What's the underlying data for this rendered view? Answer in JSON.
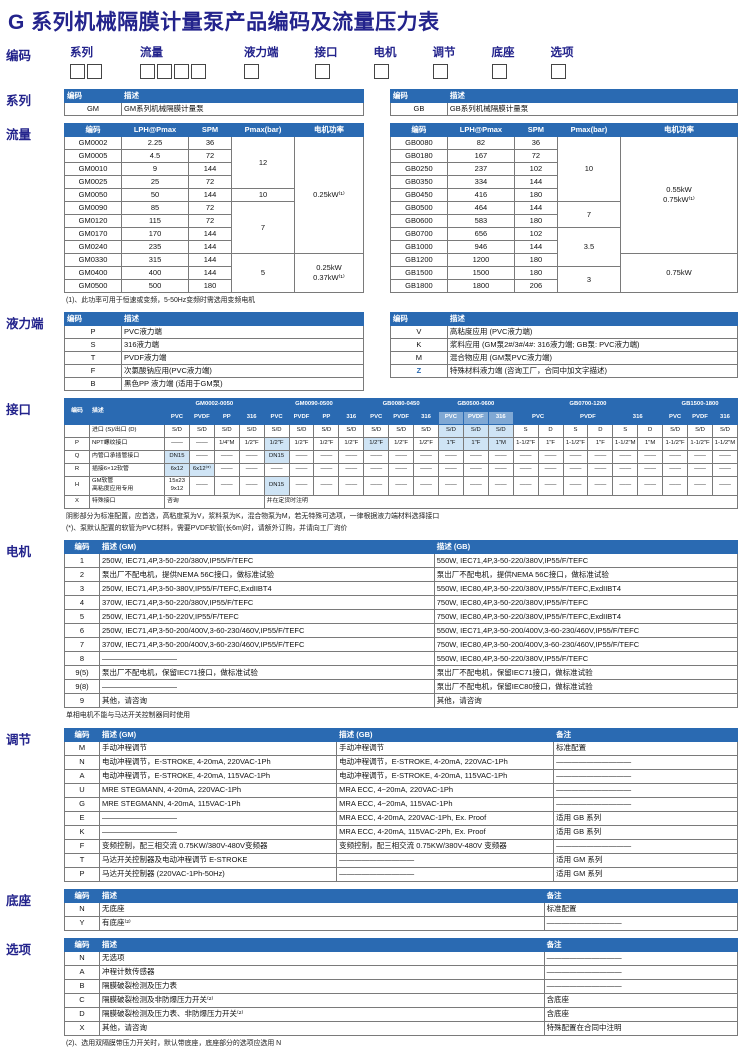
{
  "title": "G 系列机械隔膜计量泵产品编码及流量压力表",
  "coding": {
    "label": "编码",
    "groups": [
      {
        "label": "系列",
        "boxes": 2
      },
      {
        "label": "流量",
        "boxes": 4
      },
      {
        "label": "液力端",
        "boxes": 1
      },
      {
        "label": "接口",
        "boxes": 1
      },
      {
        "label": "电机",
        "boxes": 1
      },
      {
        "label": "调节",
        "boxes": 1
      },
      {
        "label": "底座",
        "boxes": 1
      },
      {
        "label": "选项",
        "boxes": 1
      }
    ]
  },
  "sections": {
    "series": "系列",
    "flow": "流量",
    "liquid": "液力端",
    "interface": "接口",
    "motor": "电机",
    "adjust": "调节",
    "base": "底座",
    "options": "选项"
  },
  "series": {
    "gm": [
      [
        {
          "t": "编码",
          "h": 1,
          "cls": "w52 tl"
        },
        {
          "t": "描述",
          "h": 1,
          "cls": "tl"
        }
      ],
      [
        "GM",
        {
          "t": "GM系列机械隔膜计量泵",
          "cls": "tl"
        }
      ]
    ],
    "gb": [
      [
        {
          "t": "编码",
          "h": 1,
          "cls": "w52 tl"
        },
        {
          "t": "描述",
          "h": 1,
          "cls": "tl"
        }
      ],
      [
        "GB",
        {
          "t": "GB系列机械隔膜计量泵",
          "cls": "tl"
        }
      ]
    ]
  },
  "flow": {
    "gm": [
      [
        {
          "t": "编码",
          "h": 1,
          "cls": "w52"
        },
        {
          "t": "LPH@Pmax",
          "h": 1,
          "cls": "w62"
        },
        {
          "t": "SPM",
          "h": 1,
          "cls": "w38"
        },
        {
          "t": "Pmax(bar)",
          "h": 1,
          "cls": "w58"
        },
        {
          "t": "电机功率",
          "h": 1
        }
      ],
      [
        "GM0002",
        "2.25",
        "36",
        {
          "t": "12",
          "rs": 4
        },
        {
          "t": "0.25kW⁽¹⁾",
          "rs": 9
        }
      ],
      [
        "GM0005",
        "4.5",
        "72"
      ],
      [
        "GM0010",
        "9",
        "144"
      ],
      [
        "GM0025",
        "25",
        "72"
      ],
      [
        "GM0050",
        "50",
        "144",
        "10"
      ],
      [
        "GM0090",
        "85",
        "72",
        {
          "t": "7",
          "rs": 4
        }
      ],
      [
        "GM0120",
        "115",
        "72"
      ],
      [
        "GM0170",
        "170",
        "144"
      ],
      [
        "GM0240",
        "235",
        "144"
      ],
      [
        "GM0330",
        "315",
        "144",
        {
          "t": "5",
          "rs": 3
        },
        {
          "t": "0.25kW\n0.37kW⁽¹⁾",
          "rs": 3,
          "cls": "pre"
        }
      ],
      [
        "GM0400",
        "400",
        "144"
      ],
      [
        "GM0500",
        "500",
        "180"
      ]
    ],
    "gb": [
      [
        {
          "t": "编码",
          "h": 1,
          "cls": "w52"
        },
        {
          "t": "LPH@Pmax",
          "h": 1,
          "cls": "w62"
        },
        {
          "t": "SPM",
          "h": 1,
          "cls": "w38"
        },
        {
          "t": "Pmax(bar)",
          "h": 1,
          "cls": "w58"
        },
        {
          "t": "电机功率",
          "h": 1
        }
      ],
      [
        "GB0080",
        "82",
        "36",
        {
          "t": "10",
          "rs": 5
        },
        {
          "t": "0.55kW\n0.75kW⁽¹⁾",
          "rs": 9,
          "cls": "pre"
        }
      ],
      [
        "GB0180",
        "167",
        "72"
      ],
      [
        "GB0250",
        "237",
        "102"
      ],
      [
        "GB0350",
        "334",
        "144"
      ],
      [
        "GB0450",
        "416",
        "180"
      ],
      [
        "GB0500",
        "464",
        "144",
        {
          "t": "7",
          "rs": 2
        }
      ],
      [
        "GB0600",
        "583",
        "180"
      ],
      [
        "GB0700",
        "656",
        "102",
        {
          "t": "3.5",
          "rs": 3
        }
      ],
      [
        "GB1000",
        "946",
        "144"
      ],
      [
        "GB1200",
        "1200",
        "180",
        {
          "t": "0.75kW",
          "rs": 3
        }
      ],
      [
        "GB1500",
        "1500",
        "180",
        {
          "t": "3",
          "rs": 2
        }
      ],
      [
        "GB1800",
        "1800",
        "206"
      ]
    ],
    "footnote": "(1)、此功率可用于恒速或变频，5-50Hz变频时需选用变频电机"
  },
  "liquid": {
    "left": [
      [
        {
          "t": "编码",
          "h": 1,
          "cls": "w52 tl"
        },
        {
          "t": "描述",
          "h": 1,
          "cls": "tl"
        }
      ],
      [
        "P",
        {
          "t": "PVC液力端",
          "cls": "tl"
        }
      ],
      [
        "S",
        {
          "t": "316液力端",
          "cls": "tl"
        }
      ],
      [
        "T",
        {
          "t": "PVDF液力端",
          "cls": "tl"
        }
      ],
      [
        "F",
        {
          "t": "次氯酸钠应用(PVC液力端)",
          "cls": "tl"
        }
      ],
      [
        "B",
        {
          "t": "黑色PP 液力端 (适用于GM泵)",
          "cls": "tl"
        }
      ]
    ],
    "right": [
      [
        {
          "t": "编码",
          "h": 1,
          "cls": "w52 tl"
        },
        {
          "t": "描述",
          "h": 1,
          "cls": "tl"
        }
      ],
      [
        "V",
        {
          "t": "高粘度应用 (PVC液力端)",
          "cls": "tl"
        }
      ],
      [
        "K",
        {
          "t": "浆料应用 (GM泵2#/3#/4#: 316液力端; GB泵: PVC液力端)",
          "cls": "tl"
        }
      ],
      [
        "M",
        {
          "t": "混合物应用 (GM泵PVC液力端)",
          "cls": "tl"
        }
      ],
      [
        {
          "t": "Z",
          "cls": "blue"
        },
        {
          "t": "特殊材料液力端 (咨询工厂，合同中加文字描述)",
          "cls": "tl"
        }
      ]
    ]
  },
  "interface": {
    "rows": [
      [
        {
          "t": "编码",
          "h": 1,
          "rs": 2,
          "cls": "w24"
        },
        {
          "t": "描述",
          "h": 1,
          "rs": 2,
          "cls": "w72 tl"
        },
        {
          "t": "GM0002-0050",
          "h": 1,
          "cs": 4
        },
        {
          "t": "GM0090-0500",
          "h": 1,
          "cs": 4
        },
        {
          "t": "GB0080-0450",
          "h": 1,
          "cs": 3
        },
        {
          "t": "GB0500-0600",
          "h": 1,
          "cs": 3
        },
        {
          "t": "GB0700-1200",
          "h": 1,
          "cs": 6
        },
        {
          "t": "GB1500-1800",
          "h": 1,
          "cs": 3
        }
      ],
      [
        {
          "t": "PVC",
          "h": 1
        },
        {
          "t": "PVDF",
          "h": 1
        },
        {
          "t": "PP",
          "h": 1
        },
        {
          "t": "316",
          "h": 1
        },
        {
          "t": "PVC",
          "h": 1
        },
        {
          "t": "PVDF",
          "h": 1
        },
        {
          "t": "PP",
          "h": 1
        },
        {
          "t": "316",
          "h": 1
        },
        {
          "t": "PVC",
          "h": 1
        },
        {
          "t": "PVDF",
          "h": 1
        },
        {
          "t": "316",
          "h": 1
        },
        {
          "t": "PVC",
          "h": 1,
          "cls": "hlt"
        },
        {
          "t": "PVDF",
          "h": 1,
          "cls": "hlt"
        },
        {
          "t": "316",
          "h": 1,
          "cls": "hlt"
        },
        {
          "t": "PVC",
          "h": 1,
          "cs": 2
        },
        {
          "t": "PVDF",
          "h": 1,
          "cs": 2
        },
        {
          "t": "316",
          "h": 1,
          "cs": 2
        },
        {
          "t": "PVC",
          "h": 1
        },
        {
          "t": "PVDF",
          "h": 1
        },
        {
          "t": "316",
          "h": 1
        }
      ],
      [
        "",
        {
          "t": "进口 (S)/出口 (D)",
          "cls": "tl"
        },
        "S/D",
        "S/D",
        "S/D",
        "S/D",
        "S/D",
        "S/D",
        "S/D",
        "S/D",
        "S/D",
        "S/D",
        "S/D",
        {
          "t": "S/D",
          "cls": "sh"
        },
        {
          "t": "S/D",
          "cls": "sh"
        },
        {
          "t": "S/D",
          "cls": "sh"
        },
        "S",
        "D",
        "S",
        "D",
        "S",
        "D",
        "S/D",
        "S/D",
        "S/D"
      ],
      [
        "P",
        {
          "t": "NPT螺纹接口",
          "cls": "tl"
        },
        "——",
        "——",
        "1/4\"M",
        "1/2\"F",
        {
          "t": "1/2\"F",
          "cls": "sh"
        },
        "1/2\"F",
        "1/2\"F",
        "1/2\"F",
        {
          "t": "1/2\"F",
          "cls": "sh"
        },
        "1/2\"F",
        "1/2\"F",
        {
          "t": "1\"F",
          "cls": "sh"
        },
        {
          "t": "1\"F",
          "cls": "sh"
        },
        {
          "t": "1\"M",
          "cls": "sh"
        },
        "1-1/2\"F",
        "1\"F",
        "1-1/2\"F",
        "1\"F",
        "1-1/2\"M",
        "1\"M",
        "1-1/2\"F",
        "1-1/2\"F",
        "1-1/2\"M"
      ],
      [
        "Q",
        {
          "t": "内管口承插管接口",
          "cls": "tl"
        },
        {
          "t": "DN15",
          "cls": "sh"
        },
        "——",
        "——",
        "——",
        {
          "t": "DN15",
          "cls": "sh"
        },
        "——",
        "——",
        "——",
        "——",
        "——",
        "——",
        "——",
        "——",
        "——",
        "——",
        "——",
        "——",
        "——",
        "——",
        "——",
        "——",
        "——",
        "——"
      ],
      [
        "R",
        {
          "t": "插接6×12软管",
          "cls": "tl"
        },
        {
          "t": "6x12",
          "cls": "sh"
        },
        {
          "t": "6x12⁽*⁾",
          "cls": "sh"
        },
        "——",
        "——",
        "——",
        "——",
        "——",
        "——",
        "——",
        "——",
        "——",
        "——",
        "——",
        "——",
        "——",
        "——",
        "——",
        "——",
        "——",
        "——",
        "——",
        "——",
        "——"
      ],
      [
        "H",
        {
          "t": "GM软管\n高粘度应用专用",
          "cls": "tl pre"
        },
        {
          "t": "15x23\n9x12",
          "cls": "pre"
        },
        "——",
        "——",
        "——",
        {
          "t": "DN15",
          "cls": "sh"
        },
        "——",
        "——",
        "——",
        "——",
        "——",
        "——",
        "——",
        "——",
        "——",
        "——",
        "——",
        "——",
        "——",
        "——",
        "——",
        "——",
        "——",
        "——"
      ],
      [
        "X",
        {
          "t": "特殊接口",
          "cls": "tl"
        },
        {
          "t": "咨询",
          "cs": 4,
          "cls": "tl"
        },
        {
          "t": "并在定货时注明",
          "cs": 19,
          "cls": "tl"
        }
      ]
    ],
    "footnote1": "阴影部分为标准配置，应首选，高粘度泵为V，浆料泵为K，混合物泵为M，若无特殊可选项，一律根据液力端材料选择接口",
    "footnote2": "(*)、泵默认配置的软管为PVC材料，需要PVDF软管(长6m)时，请额外订购，并请向工厂询价"
  },
  "motor": {
    "rows": [
      [
        {
          "t": "编码",
          "h": 1,
          "cls": "w30"
        },
        {
          "t": "描述 (GM)",
          "h": 1,
          "cls": "wgm tl"
        },
        {
          "t": "描述 (GB)",
          "h": 1,
          "cls": "tl"
        }
      ],
      [
        "1",
        {
          "t": "250W, IEC71,4P,3-50-220/380V,IP55/F/TEFC",
          "cls": "tl"
        },
        {
          "t": "550W, IEC71,4P,3-50-220/380V,IP55/F/TEFC",
          "cls": "tl"
        }
      ],
      [
        "2",
        {
          "t": "泵出厂不配电机，提供NEMA 56C接口，做标准试验",
          "cls": "tl"
        },
        {
          "t": "泵出厂不配电机，提供NEMA 56C接口，做标准试验",
          "cls": "tl"
        }
      ],
      [
        "3",
        {
          "t": "250W, IEC71,4P,3-50-380V,IP55/F/TEFC,ExdIIBT4",
          "cls": "tl"
        },
        {
          "t": "550W, IEC80,4P,3-50-220/380V,IP55/F/TEFC,ExdIIBT4",
          "cls": "tl"
        }
      ],
      [
        "4",
        {
          "t": "370W, IEC71,4P,3-50-220/380V,IP55/F/TEFC",
          "cls": "tl"
        },
        {
          "t": "750W, IEC80,4P,3-50-220/380V,IP55/F/TEFC",
          "cls": "tl"
        }
      ],
      [
        "5",
        {
          "t": "250W, IEC71,4P,1-50-220V,IP55/F/TEFC",
          "cls": "tl"
        },
        {
          "t": "750W, IEC80,4P,3-50-220/380V,IP55/F/TEFC,ExdIIBT4",
          "cls": "tl"
        }
      ],
      [
        "6",
        {
          "t": "250W, IEC71,4P,3-50-200/400V,3-60-230/460V,IP55/F/TEFC",
          "cls": "tl"
        },
        {
          "t": "550W, IEC71,4P,3-50-200/400V,3-60-230/460V,IP55/F/TEFC",
          "cls": "tl"
        }
      ],
      [
        "7",
        {
          "t": "370W, IEC71,4P,3-50-200/400V,3-60-230/460V,IP55/F/TEFC",
          "cls": "tl"
        },
        {
          "t": "750W, IEC80,4P,3-50-200/400V,3-60-230/460V,IP55/F/TEFC",
          "cls": "tl"
        }
      ],
      [
        "8",
        {
          "t": "——————————",
          "cls": "tl"
        },
        {
          "t": "550W, IEC80,4P,3-50-220/380V,IP55/F/TEFC",
          "cls": "tl"
        }
      ],
      [
        "9(5)",
        {
          "t": "泵出厂不配电机，保留IEC71接口，做标准试验",
          "cls": "tl"
        },
        {
          "t": "泵出厂不配电机，保留IEC71接口，做标准试验",
          "cls": "tl"
        }
      ],
      [
        "9(8)",
        {
          "t": "——————————",
          "cls": "tl"
        },
        {
          "t": "泵出厂不配电机，保留IEC80接口，做标准试验",
          "cls": "tl"
        }
      ],
      [
        "9",
        {
          "t": "其他，请咨询",
          "cls": "tl"
        },
        {
          "t": "其他，请咨询",
          "cls": "tl"
        }
      ]
    ],
    "footnote": "单相电机不能与马达开关控制器同时使用"
  },
  "adjust": {
    "rows": [
      [
        {
          "t": "编码",
          "h": 1,
          "cls": "w30"
        },
        {
          "t": "描述 (GM)",
          "h": 1,
          "cls": "w34 tl"
        },
        {
          "t": "描述 (GB)",
          "h": 1,
          "cls": "w31 tl"
        },
        {
          "t": "备注",
          "h": 1,
          "cls": "tl"
        }
      ],
      [
        "M",
        {
          "t": "手动冲程调节",
          "cls": "tl"
        },
        {
          "t": "手动冲程调节",
          "cls": "tl"
        },
        {
          "t": "标准配置",
          "cls": "tl"
        }
      ],
      [
        "N",
        {
          "t": "电动冲程调节，E-STROKE, 4-20mA, 220VAC-1Ph",
          "cls": "tl"
        },
        {
          "t": "电动冲程调节，E-STROKE, 4-20mA, 220VAC-1Ph",
          "cls": "tl"
        },
        {
          "t": "——————————",
          "cls": "tl"
        }
      ],
      [
        "A",
        {
          "t": "电动冲程调节，E-STROKE, 4-20mA, 115VAC-1Ph",
          "cls": "tl"
        },
        {
          "t": "电动冲程调节，E-STROKE, 4-20mA, 115VAC-1Ph",
          "cls": "tl"
        },
        {
          "t": "——————————",
          "cls": "tl"
        }
      ],
      [
        "U",
        {
          "t": "MRE STEGMANN, 4-20mA, 220VAC-1Ph",
          "cls": "tl"
        },
        {
          "t": "MRA ECC, 4~20mA, 220VAC-1Ph",
          "cls": "tl"
        },
        {
          "t": "——————————",
          "cls": "tl"
        }
      ],
      [
        "G",
        {
          "t": "MRE STEGMANN, 4-20mA, 115VAC-1Ph",
          "cls": "tl"
        },
        {
          "t": "MRA ECC, 4~20mA, 115VAC-1Ph",
          "cls": "tl"
        },
        {
          "t": "——————————",
          "cls": "tl"
        }
      ],
      [
        "E",
        {
          "t": "——————————",
          "cls": "tl"
        },
        {
          "t": "MRA ECC, 4-20mA, 220VAC-1Ph, Ex. Proof",
          "cls": "tl"
        },
        {
          "t": "适用 GB 系列",
          "cls": "tl"
        }
      ],
      [
        "K",
        {
          "t": "——————————",
          "cls": "tl"
        },
        {
          "t": "MRA ECC, 4-20mA, 115VAC-2Ph, Ex. Proof",
          "cls": "tl"
        },
        {
          "t": "适用 GB 系列",
          "cls": "tl"
        }
      ],
      [
        "F",
        {
          "t": "变频控制，配三相交流 0.75KW/380V-480V变频器",
          "cls": "tl"
        },
        {
          "t": "变频控制，配三相交流 0.75KW/380V-480V 变频器",
          "cls": "tl"
        },
        {
          "t": "——————————",
          "cls": "tl"
        }
      ],
      [
        "T",
        {
          "t": "马达开关控制器及电动冲程调节 E-STROKE",
          "cls": "tl"
        },
        {
          "t": "——————————",
          "cls": "tl"
        },
        {
          "t": "适用 GM 系列",
          "cls": "tl"
        }
      ],
      [
        "P",
        {
          "t": "马达开关控制器 (220VAC-1Ph-50Hz)",
          "cls": "tl"
        },
        {
          "t": "——————————",
          "cls": "tl"
        },
        {
          "t": "适用 GM 系列",
          "cls": "tl"
        }
      ]
    ]
  },
  "base": {
    "rows": [
      [
        {
          "t": "编码",
          "h": 1,
          "cls": "w30"
        },
        {
          "t": "描述",
          "h": 1,
          "cls": "tl"
        },
        {
          "t": "备注",
          "h": 1,
          "cls": "wrk tl"
        }
      ],
      [
        "N",
        {
          "t": "无底座",
          "cls": "tl"
        },
        {
          "t": "标准配置",
          "cls": "tl"
        }
      ],
      [
        "Y",
        {
          "t": "有底座⁽²⁾",
          "cls": "tl"
        },
        {
          "t": "——————————",
          "cls": "tl"
        }
      ]
    ]
  },
  "options": {
    "rows": [
      [
        {
          "t": "编码",
          "h": 1,
          "cls": "w30"
        },
        {
          "t": "描述",
          "h": 1,
          "cls": "tl"
        },
        {
          "t": "备注",
          "h": 1,
          "cls": "wrk tl"
        }
      ],
      [
        "N",
        {
          "t": "无选项",
          "cls": "tl"
        },
        {
          "t": "——————————",
          "cls": "tl"
        }
      ],
      [
        "A",
        {
          "t": "冲程计数传感器",
          "cls": "tl"
        },
        {
          "t": "——————————",
          "cls": "tl"
        }
      ],
      [
        "B",
        {
          "t": "隔膜破裂检测及压力表",
          "cls": "tl"
        },
        {
          "t": "——————————",
          "cls": "tl"
        }
      ],
      [
        "C",
        {
          "t": "隔膜破裂检测及非防爆压力开关⁽²⁾",
          "cls": "tl"
        },
        {
          "t": "含底座",
          "cls": "tl"
        }
      ],
      [
        "D",
        {
          "t": "隔膜破裂检测及压力表、非防爆压力开关⁽²⁾",
          "cls": "tl"
        },
        {
          "t": "含底座",
          "cls": "tl"
        }
      ],
      [
        "X",
        {
          "t": "其他，请咨询",
          "cls": "tl"
        },
        {
          "t": "特殊配置在合同中注明",
          "cls": "tl"
        }
      ]
    ],
    "footnote": "(2)、选用双隔膜带压力开关时，默认带底座，底座部分的选项应选用 N"
  }
}
